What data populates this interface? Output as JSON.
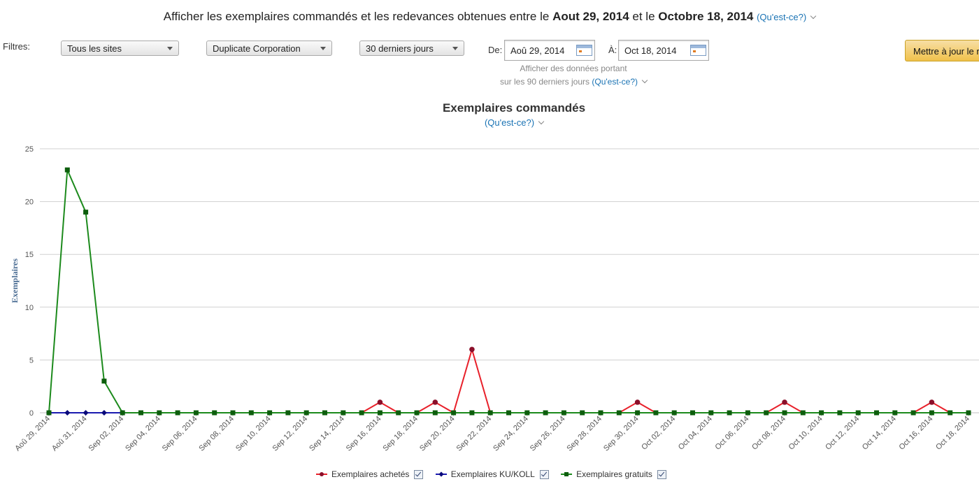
{
  "header": {
    "prefix": "Afficher les exemplaires commandés et les redevances obtenues entre le",
    "date_from": "Aout 29, 2014",
    "between": "et le",
    "date_to": "Octobre 18, 2014",
    "help_link": "(Qu'est-ce?)"
  },
  "filters": {
    "label": "Filtres:",
    "site": "Tous les sites",
    "publisher": "Duplicate Corporation",
    "period": "30 derniers jours",
    "from_label": "De:",
    "from_value": "Aoû 29, 2014",
    "to_label": "À:",
    "to_value": "Oct 18, 2014",
    "note_line1": "Afficher des données portant",
    "note_line2": "sur les 90 derniers jours",
    "note_link": "(Qu'est-ce?)",
    "update_button": "Mettre à jour le rapport"
  },
  "chart_data": {
    "type": "line",
    "title": "Exemplaires commandés",
    "help_link": "(Qu'est-ce?)",
    "ylabel": "Exemplaires",
    "ylim": [
      0,
      25
    ],
    "yticks": [
      0,
      5,
      10,
      15,
      20,
      25
    ],
    "grid": true,
    "legend_position": "bottom",
    "x": [
      "Aoû 29, 2014",
      "Aoû 30, 2014",
      "Aoû 31, 2014",
      "Sep 01, 2014",
      "Sep 02, 2014",
      "Sep 03, 2014",
      "Sep 04, 2014",
      "Sep 05, 2014",
      "Sep 06, 2014",
      "Sep 07, 2014",
      "Sep 08, 2014",
      "Sep 09, 2014",
      "Sep 10, 2014",
      "Sep 11, 2014",
      "Sep 12, 2014",
      "Sep 13, 2014",
      "Sep 14, 2014",
      "Sep 15, 2014",
      "Sep 16, 2014",
      "Sep 17, 2014",
      "Sep 18, 2014",
      "Sep 19, 2014",
      "Sep 20, 2014",
      "Sep 21, 2014",
      "Sep 22, 2014",
      "Sep 23, 2014",
      "Sep 24, 2014",
      "Sep 25, 2014",
      "Sep 26, 2014",
      "Sep 27, 2014",
      "Sep 28, 2014",
      "Sep 29, 2014",
      "Sep 30, 2014",
      "Oct 01, 2014",
      "Oct 02, 2014",
      "Oct 03, 2014",
      "Oct 04, 2014",
      "Oct 05, 2014",
      "Oct 06, 2014",
      "Oct 07, 2014",
      "Oct 08, 2014",
      "Oct 09, 2014",
      "Oct 10, 2014",
      "Oct 11, 2014",
      "Oct 12, 2014",
      "Oct 13, 2014",
      "Oct 14, 2014",
      "Oct 15, 2014",
      "Oct 16, 2014",
      "Oct 17, 2014",
      "Oct 18, 2014"
    ],
    "xticklabels": [
      "Aoû 29, 2014",
      "Aoû 31, 2014",
      "Sep 02, 2014",
      "Sep 04, 2014",
      "Sep 06, 2014",
      "Sep 08, 2014",
      "Sep 10, 2014",
      "Sep 12, 2014",
      "Sep 14, 2014",
      "Sep 16, 2014",
      "Sep 18, 2014",
      "Sep 20, 2014",
      "Sep 22, 2014",
      "Sep 24, 2014",
      "Sep 26, 2014",
      "Sep 28, 2014",
      "Sep 30, 2014",
      "Oct 02, 2014",
      "Oct 04, 2014",
      "Oct 06, 2014",
      "Oct 08, 2014",
      "Oct 10, 2014",
      "Oct 12, 2014",
      "Oct 14, 2014",
      "Oct 16, 2014",
      "Oct 18, 2014"
    ],
    "series": [
      {
        "name": "Exemplaires achetés",
        "color": "#e8202a",
        "marker_color": "#8b0f2a",
        "marker": "circle",
        "checked": true,
        "values": [
          0,
          0,
          0,
          0,
          0,
          0,
          0,
          0,
          0,
          0,
          0,
          0,
          0,
          0,
          0,
          0,
          0,
          0,
          1,
          0,
          0,
          1,
          0,
          6,
          0,
          0,
          0,
          0,
          0,
          0,
          0,
          0,
          1,
          0,
          0,
          0,
          0,
          0,
          0,
          0,
          1,
          0,
          0,
          0,
          0,
          0,
          0,
          0,
          1,
          0,
          0
        ]
      },
      {
        "name": "Exemplaires KU/KOLL",
        "color": "#1a1ab0",
        "marker_color": "#0a0a7a",
        "marker": "diamond",
        "checked": true,
        "values": [
          0,
          0,
          0,
          0,
          0,
          null,
          null,
          null,
          null,
          null,
          null,
          null,
          null,
          null,
          null,
          null,
          null,
          null,
          null,
          null,
          null,
          null,
          null,
          null,
          null,
          null,
          null,
          null,
          null,
          null,
          null,
          null,
          null,
          null,
          null,
          null,
          null,
          null,
          null,
          null,
          null,
          null,
          null,
          null,
          null,
          null,
          null,
          null,
          null,
          null,
          null
        ]
      },
      {
        "name": "Exemplaires gratuits",
        "color": "#1c8a1c",
        "marker_color": "#0d5e0d",
        "marker": "square",
        "checked": true,
        "values": [
          0,
          23,
          19,
          3,
          0,
          0,
          0,
          0,
          0,
          0,
          0,
          0,
          0,
          0,
          0,
          0,
          0,
          0,
          0,
          0,
          0,
          0,
          0,
          0,
          0,
          0,
          0,
          0,
          0,
          0,
          0,
          0,
          0,
          0,
          0,
          0,
          0,
          0,
          0,
          0,
          0,
          0,
          0,
          0,
          0,
          0,
          0,
          0,
          0,
          0,
          0
        ]
      }
    ]
  }
}
